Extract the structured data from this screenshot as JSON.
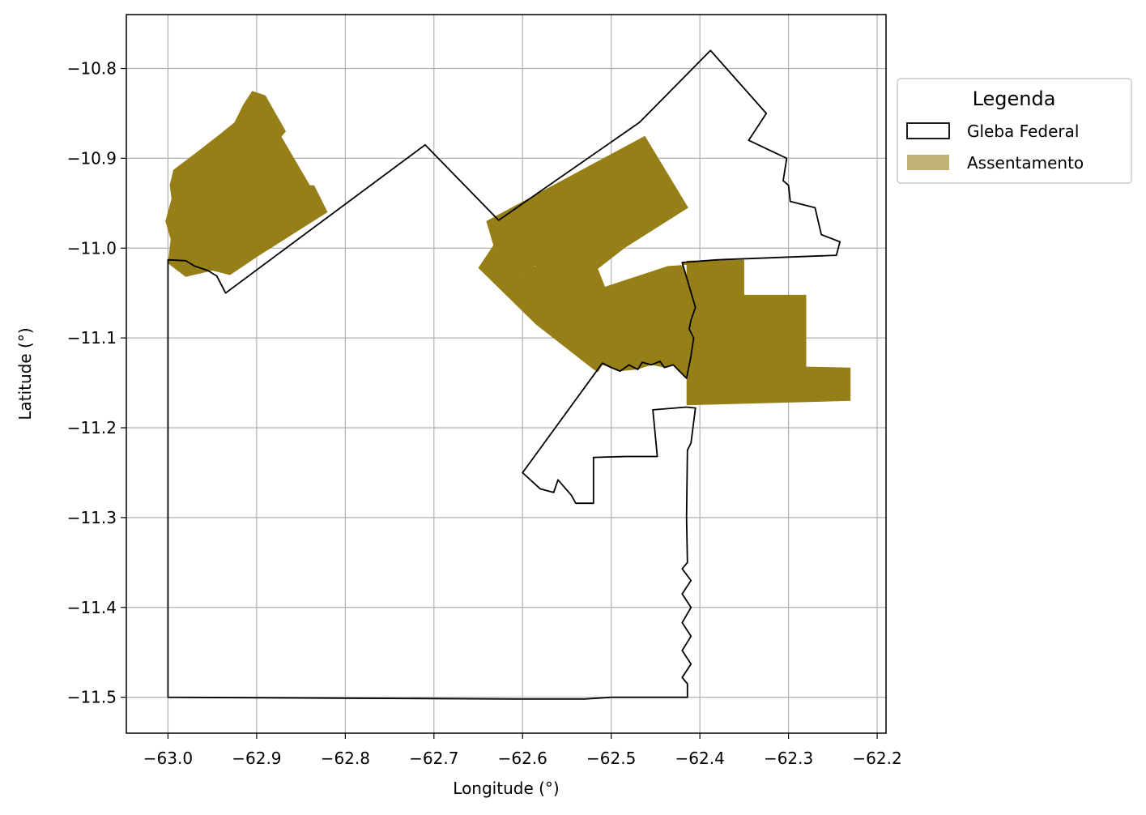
{
  "chart_data": {
    "type": "map",
    "xlabel": "Longitude (°)",
    "ylabel": "Latitude (°)",
    "xlim": [
      -63.047,
      -62.19
    ],
    "ylim": [
      -11.54,
      -10.74
    ],
    "xticks": [
      -63.0,
      -62.9,
      -62.8,
      -62.7,
      -62.6,
      -62.5,
      -62.4,
      -62.3,
      -62.2
    ],
    "xtick_labels": [
      "−63.0",
      "−62.9",
      "−62.8",
      "−62.7",
      "−62.6",
      "−62.5",
      "−62.4",
      "−62.3",
      "−62.2"
    ],
    "yticks": [
      -10.8,
      -10.9,
      -11.0,
      -11.1,
      -11.2,
      -11.3,
      -11.4,
      -11.5
    ],
    "ytick_labels": [
      "−10.8",
      "−10.9",
      "−11.0",
      "−11.1",
      "−11.2",
      "−11.3",
      "−11.4",
      "−11.5"
    ],
    "grid": true,
    "legend": {
      "title": "Legenda",
      "placement": "outside-right-top",
      "entries": [
        {
          "label": "Gleba Federal",
          "style": "outline",
          "color": "#000000"
        },
        {
          "label": "Assentamento",
          "style": "fill",
          "color": "#967f17",
          "alpha": 0.6
        }
      ]
    },
    "layers": [
      {
        "name": "Gleba Federal",
        "style": "outline",
        "color": "#000000",
        "polygons": [
          [
            [
              -63.0,
              -11.013
            ],
            [
              -62.98,
              -11.014
            ],
            [
              -62.97,
              -11.02
            ],
            [
              -62.955,
              -11.025
            ],
            [
              -62.945,
              -11.031
            ],
            [
              -62.935,
              -11.05
            ],
            [
              -62.71,
              -10.885
            ],
            [
              -62.627,
              -10.969
            ],
            [
              -62.468,
              -10.86
            ],
            [
              -62.388,
              -10.78
            ],
            [
              -62.325,
              -10.85
            ],
            [
              -62.345,
              -10.88
            ],
            [
              -62.302,
              -10.9
            ],
            [
              -62.306,
              -10.925
            ],
            [
              -62.3,
              -10.93
            ],
            [
              -62.298,
              -10.948
            ],
            [
              -62.27,
              -10.955
            ],
            [
              -62.263,
              -10.985
            ],
            [
              -62.242,
              -10.993
            ],
            [
              -62.246,
              -11.008
            ],
            [
              -62.38,
              -11.013
            ],
            [
              -62.42,
              -11.016
            ],
            [
              -62.405,
              -11.066
            ],
            [
              -62.41,
              -11.08
            ],
            [
              -62.412,
              -11.09
            ],
            [
              -62.407,
              -11.1
            ],
            [
              -62.41,
              -11.12
            ],
            [
              -62.415,
              -11.145
            ],
            [
              -62.43,
              -11.13
            ],
            [
              -62.44,
              -11.133
            ],
            [
              -62.445,
              -11.126
            ],
            [
              -62.455,
              -11.13
            ],
            [
              -62.465,
              -11.127
            ],
            [
              -62.47,
              -11.135
            ],
            [
              -62.48,
              -11.13
            ],
            [
              -62.49,
              -11.137
            ],
            [
              -62.5,
              -11.133
            ],
            [
              -62.51,
              -11.128
            ],
            [
              -62.6,
              -11.25
            ],
            [
              -62.58,
              -11.268
            ],
            [
              -62.565,
              -11.272
            ],
            [
              -62.56,
              -11.258
            ],
            [
              -62.545,
              -11.275
            ],
            [
              -62.54,
              -11.284
            ],
            [
              -62.52,
              -11.284
            ],
            [
              -62.52,
              -11.233
            ],
            [
              -62.483,
              -11.232
            ],
            [
              -62.448,
              -11.232
            ],
            [
              -62.453,
              -11.18
            ],
            [
              -62.415,
              -11.177
            ],
            [
              -62.405,
              -11.178
            ],
            [
              -62.41,
              -11.217
            ],
            [
              -62.414,
              -11.225
            ],
            [
              -62.415,
              -11.3
            ],
            [
              -62.414,
              -11.35
            ],
            [
              -62.42,
              -11.357
            ],
            [
              -62.41,
              -11.37
            ],
            [
              -62.42,
              -11.385
            ],
            [
              -62.41,
              -11.4
            ],
            [
              -62.42,
              -11.417
            ],
            [
              -62.41,
              -11.432
            ],
            [
              -62.42,
              -11.448
            ],
            [
              -62.41,
              -11.463
            ],
            [
              -62.42,
              -11.478
            ],
            [
              -62.414,
              -11.485
            ],
            [
              -62.414,
              -11.5
            ],
            [
              -62.5,
              -11.5
            ],
            [
              -62.53,
              -11.502
            ],
            [
              -62.6,
              -11.502
            ],
            [
              -62.8,
              -11.501
            ],
            [
              -63.0,
              -11.5
            ],
            [
              -63.0,
              -11.013
            ]
          ]
        ]
      },
      {
        "name": "Assentamento",
        "style": "fill",
        "color": "#967f17",
        "polygons": [
          [
            [
              -62.994,
              -10.913
            ],
            [
              -62.97,
              -10.895
            ],
            [
              -62.94,
              -10.872
            ],
            [
              -62.925,
              -10.86
            ],
            [
              -62.915,
              -10.84
            ],
            [
              -62.905,
              -10.825
            ],
            [
              -62.89,
              -10.83
            ],
            [
              -62.867,
              -10.87
            ],
            [
              -62.872,
              -10.876
            ],
            [
              -62.84,
              -10.93
            ],
            [
              -62.835,
              -10.93
            ],
            [
              -62.82,
              -10.96
            ],
            [
              -62.9,
              -11.01
            ],
            [
              -62.93,
              -11.03
            ],
            [
              -62.95,
              -11.025
            ],
            [
              -62.98,
              -11.032
            ],
            [
              -63.0,
              -11.017
            ],
            [
              -62.997,
              -10.99
            ],
            [
              -63.003,
              -10.97
            ],
            [
              -62.996,
              -10.945
            ],
            [
              -62.998,
              -10.93
            ],
            [
              -62.994,
              -10.913
            ]
          ],
          [
            [
              -62.641,
              -10.97
            ],
            [
              -62.462,
              -10.875
            ],
            [
              -62.413,
              -10.955
            ],
            [
              -62.485,
              -11.0
            ],
            [
              -62.515,
              -11.023
            ],
            [
              -62.507,
              -11.043
            ],
            [
              -62.436,
              -11.02
            ],
            [
              -62.406,
              -11.018
            ],
            [
              -62.42,
              -11.016
            ],
            [
              -62.412,
              -11.045
            ],
            [
              -62.403,
              -11.066
            ],
            [
              -62.41,
              -11.08
            ],
            [
              -62.412,
              -11.09
            ],
            [
              -62.407,
              -11.1
            ],
            [
              -62.41,
              -11.12
            ],
            [
              -62.415,
              -11.145
            ],
            [
              -62.43,
              -11.13
            ],
            [
              -62.44,
              -11.133
            ],
            [
              -62.455,
              -11.13
            ],
            [
              -62.47,
              -11.135
            ],
            [
              -62.49,
              -11.137
            ],
            [
              -62.51,
              -11.13
            ],
            [
              -62.515,
              -11.138
            ],
            [
              -62.52,
              -11.135
            ],
            [
              -62.585,
              -11.085
            ],
            [
              -62.65,
              -11.022
            ],
            [
              -62.625,
              -10.985
            ],
            [
              -62.585,
              -11.022
            ],
            [
              -62.605,
              -11.028
            ],
            [
              -62.61,
              -11.03
            ],
            [
              -62.595,
              -11.02
            ],
            [
              -62.62,
              -11.03
            ],
            [
              -62.6,
              -11.03
            ],
            [
              -62.585,
              -11.02
            ],
            [
              -62.62,
              -11.025
            ],
            [
              -62.608,
              -11.015
            ],
            [
              -62.59,
              -11.02
            ],
            [
              -62.585,
              -11.025
            ],
            [
              -62.615,
              -11.025
            ],
            [
              -62.62,
              -11.03
            ],
            [
              -62.6,
              -11.02
            ],
            [
              -62.583,
              -11.025
            ],
            [
              -62.618,
              -11.02
            ],
            [
              -62.641,
              -10.97
            ]
          ],
          [
            [
              -62.62,
              -11.04
            ],
            [
              -62.6,
              -11.03
            ],
            [
              -62.586,
              -11.022
            ],
            [
              -62.641,
              -10.97
            ],
            [
              -62.62,
              -11.04
            ]
          ],
          [
            [
              -62.415,
              -11.014
            ],
            [
              -62.35,
              -11.013
            ],
            [
              -62.35,
              -11.052
            ],
            [
              -62.28,
              -11.052
            ],
            [
              -62.28,
              -11.132
            ],
            [
              -62.23,
              -11.133
            ],
            [
              -62.23,
              -11.17
            ],
            [
              -62.415,
              -11.175
            ],
            [
              -62.415,
              -11.014
            ]
          ]
        ]
      }
    ]
  }
}
